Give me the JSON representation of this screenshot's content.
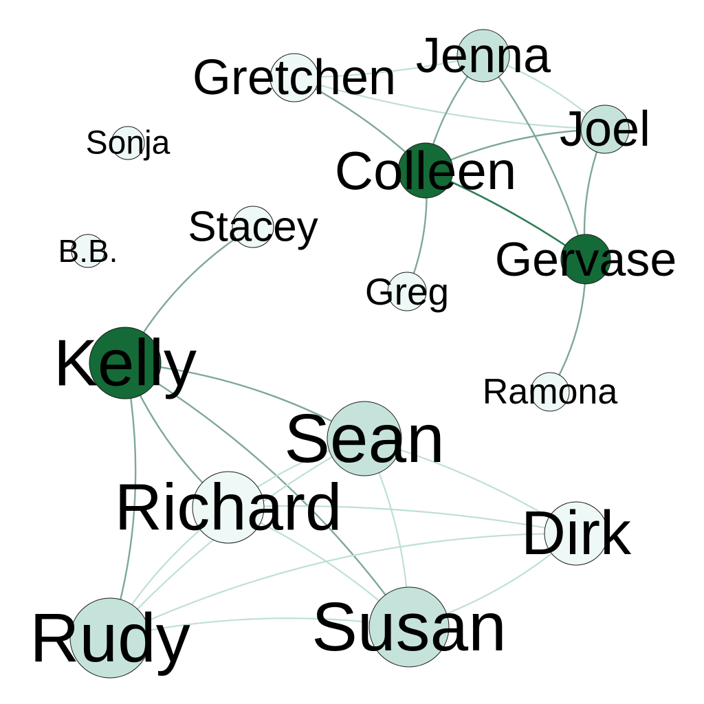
{
  "colors": {
    "background": "#ffffff",
    "node_dark": "#146b37",
    "node_mid": "#c5e3da",
    "node_light": "#eef8f6",
    "edge_strong": "#2e7d55",
    "edge_medium": "#7fa896",
    "edge_light": "#bfe0d4"
  },
  "nodes": [
    {
      "id": "gretchen",
      "label": "Gretchen",
      "shade": "light"
    },
    {
      "id": "jenna",
      "label": "Jenna",
      "shade": "mid"
    },
    {
      "id": "joel",
      "label": "Joel",
      "shade": "mid"
    },
    {
      "id": "sonja",
      "label": "Sonja",
      "shade": "light"
    },
    {
      "id": "colleen",
      "label": "Colleen",
      "shade": "dark"
    },
    {
      "id": "stacey",
      "label": "Stacey",
      "shade": "light"
    },
    {
      "id": "bb",
      "label": "B.B.",
      "shade": "light"
    },
    {
      "id": "gervase",
      "label": "Gervase",
      "shade": "dark"
    },
    {
      "id": "greg",
      "label": "Greg",
      "shade": "light"
    },
    {
      "id": "kelly",
      "label": "Kelly",
      "shade": "dark"
    },
    {
      "id": "ramona",
      "label": "Ramona",
      "shade": "light"
    },
    {
      "id": "sean",
      "label": "Sean",
      "shade": "mid"
    },
    {
      "id": "richard",
      "label": "Richard",
      "shade": "light"
    },
    {
      "id": "dirk",
      "label": "Dirk",
      "shade": "light"
    },
    {
      "id": "rudy",
      "label": "Rudy",
      "shade": "mid"
    },
    {
      "id": "susan",
      "label": "Susan",
      "shade": "mid"
    }
  ],
  "edges": [
    {
      "source": "gretchen",
      "target": "jenna",
      "strength": "light"
    },
    {
      "source": "gretchen",
      "target": "joel",
      "strength": "light"
    },
    {
      "source": "gretchen",
      "target": "colleen",
      "strength": "medium"
    },
    {
      "source": "jenna",
      "target": "colleen",
      "strength": "medium"
    },
    {
      "source": "jenna",
      "target": "gervase",
      "strength": "medium"
    },
    {
      "source": "jenna",
      "target": "joel",
      "strength": "light"
    },
    {
      "source": "colleen",
      "target": "joel",
      "strength": "medium"
    },
    {
      "source": "colleen",
      "target": "gervase",
      "strength": "strong"
    },
    {
      "source": "colleen",
      "target": "greg",
      "strength": "medium"
    },
    {
      "source": "joel",
      "target": "gervase",
      "strength": "medium"
    },
    {
      "source": "gervase",
      "target": "ramona",
      "strength": "medium"
    },
    {
      "source": "stacey",
      "target": "kelly",
      "strength": "medium"
    },
    {
      "source": "kelly",
      "target": "sean",
      "strength": "medium"
    },
    {
      "source": "kelly",
      "target": "richard",
      "strength": "medium"
    },
    {
      "source": "kelly",
      "target": "susan",
      "strength": "medium"
    },
    {
      "source": "kelly",
      "target": "rudy",
      "strength": "medium"
    },
    {
      "source": "sean",
      "target": "dirk",
      "strength": "light"
    },
    {
      "source": "sean",
      "target": "richard",
      "strength": "light"
    },
    {
      "source": "sean",
      "target": "rudy",
      "strength": "light"
    },
    {
      "source": "sean",
      "target": "susan",
      "strength": "light"
    },
    {
      "source": "richard",
      "target": "dirk",
      "strength": "light"
    },
    {
      "source": "richard",
      "target": "rudy",
      "strength": "light"
    },
    {
      "source": "richard",
      "target": "susan",
      "strength": "light"
    },
    {
      "source": "rudy",
      "target": "susan",
      "strength": "light"
    },
    {
      "source": "rudy",
      "target": "dirk",
      "strength": "light"
    },
    {
      "source": "susan",
      "target": "dirk",
      "strength": "light"
    }
  ]
}
